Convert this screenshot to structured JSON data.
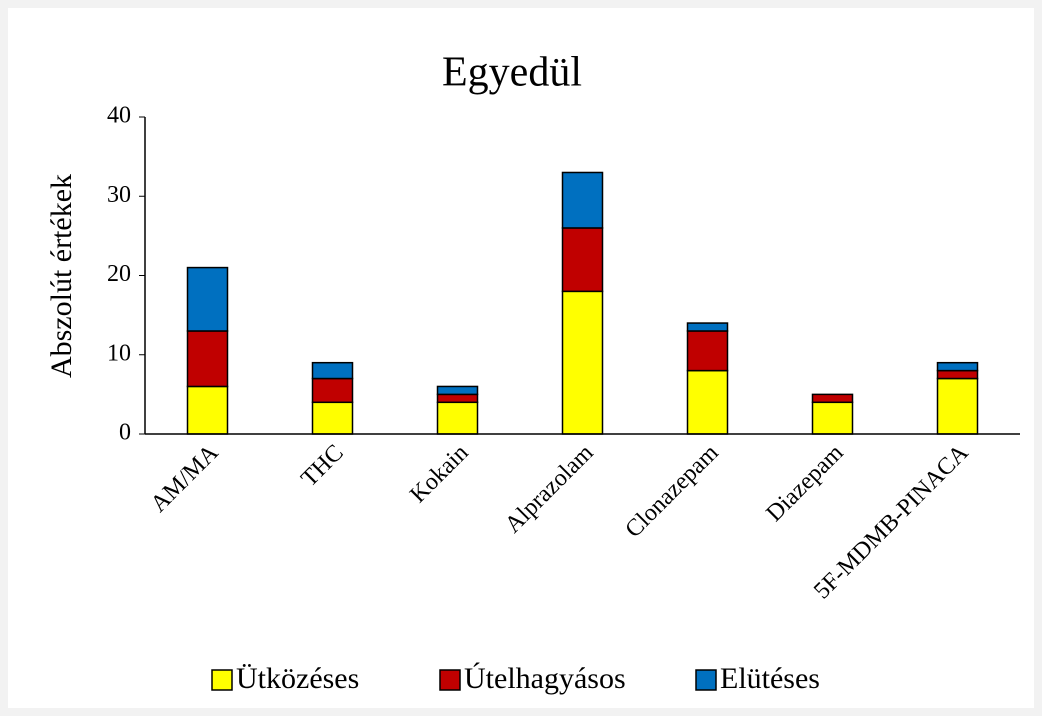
{
  "chart_data": {
    "type": "stacked_bar",
    "title": "Egyedül",
    "y_label": "Abszolút értékek",
    "categories": [
      "AM/MA",
      "THC",
      "Kokain",
      "Alprazolam",
      "Clonazepam",
      "Diazepam",
      "5F-MDMB-PINACA"
    ],
    "series": [
      {
        "name": "Ütközéses",
        "color": "#ffff00",
        "values": [
          6,
          4,
          4,
          18,
          8,
          4,
          7
        ]
      },
      {
        "name": "Útelhagyásos",
        "color": "#c00000",
        "values": [
          7,
          3,
          1,
          8,
          5,
          1,
          1
        ]
      },
      {
        "name": "Elütéses",
        "color": "#0070c0",
        "values": [
          8,
          2,
          1,
          7,
          1,
          0,
          1
        ]
      }
    ],
    "ylim": [
      0,
      40
    ],
    "yticks": [
      0,
      10,
      20,
      30,
      40
    ],
    "grid": false,
    "legend": "bottom"
  }
}
